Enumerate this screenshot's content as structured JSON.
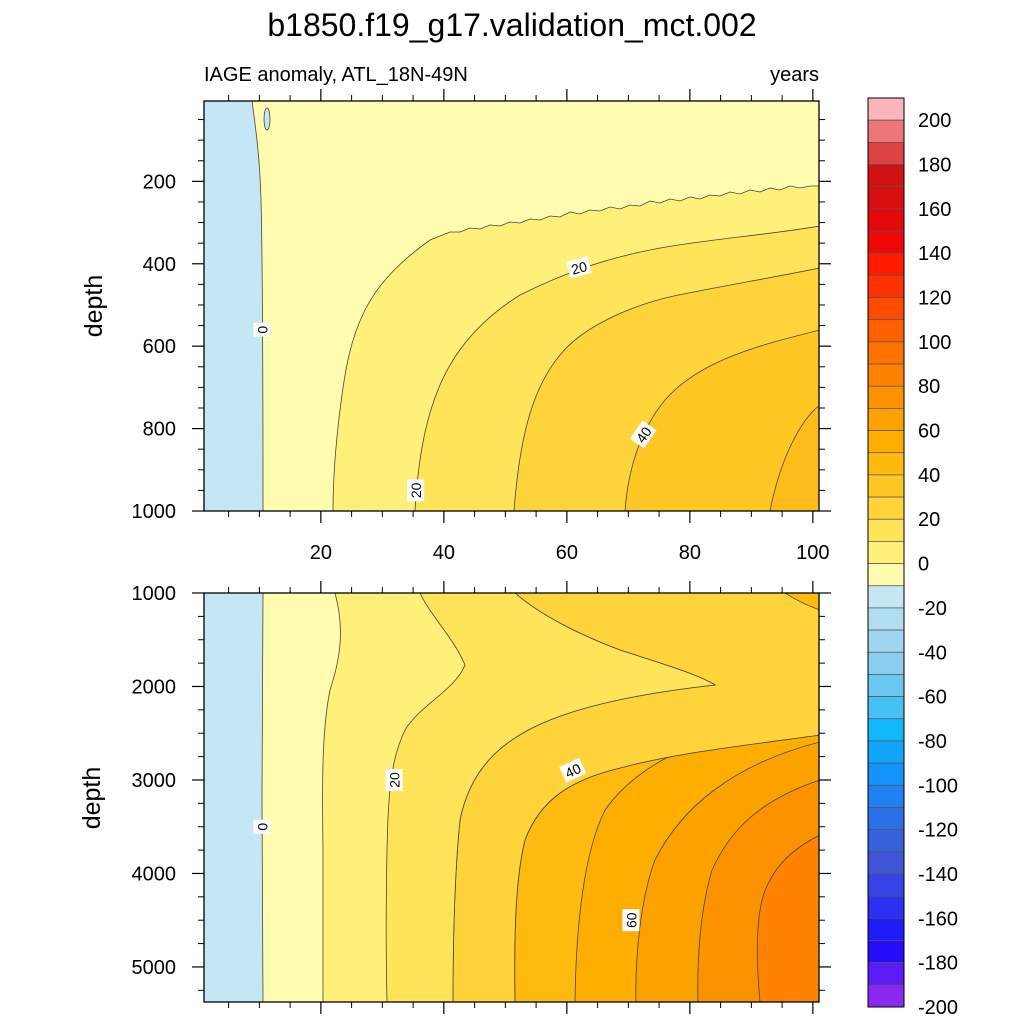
{
  "chart_data": {
    "type": "contour",
    "title": "b1850.f19_g17.validation_mct.002",
    "subtitle_left": "IAGE anomaly, ATL_18N-49N",
    "subtitle_right": "years",
    "xlabel": "",
    "x_ticks": [
      20,
      40,
      60,
      80,
      100
    ],
    "x_range": [
      1,
      101
    ],
    "panels": [
      {
        "name": "upper",
        "ylabel": "depth",
        "y_range": [
          1000,
          5
        ],
        "y_ticks": [
          200,
          400,
          600,
          800,
          1000
        ],
        "contour_labels": [
          {
            "text": "0",
            "x": 10.5,
            "y": 560
          },
          {
            "text": "20",
            "x": 62,
            "y": 410
          },
          {
            "text": "20",
            "x": 35.5,
            "y": 950
          },
          {
            "text": "40",
            "x": 72.5,
            "y": 815
          }
        ]
      },
      {
        "name": "lower",
        "ylabel": "depth",
        "y_range": [
          1000,
          5375
        ],
        "y_ticks": [
          1000,
          2000,
          3000,
          4000,
          5000
        ],
        "contour_labels": [
          {
            "text": "0",
            "x": 10.5,
            "y": 3500
          },
          {
            "text": "20",
            "x": 32,
            "y": 3000
          },
          {
            "text": "40",
            "x": 61,
            "y": 2900
          },
          {
            "text": "60",
            "x": 70.5,
            "y": 4500
          }
        ]
      }
    ],
    "colorbar": {
      "labels": [
        "200",
        "180",
        "160",
        "140",
        "120",
        "100",
        "80",
        "60",
        "40",
        "20",
        "0",
        "-20",
        "-40",
        "-60",
        "-80",
        "-100",
        "-120",
        "-140",
        "-160",
        "-180",
        "-200"
      ],
      "colors": [
        "#f9b5b9",
        "#ef7677",
        "#dd4245",
        "#cf1313",
        "#d90e0e",
        "#e40a0a",
        "#ef0808",
        "#fe1b00",
        "#fe3200",
        "#fd4b00",
        "#fd6000",
        "#fe7200",
        "#ff8200",
        "#fd9200",
        "#fca200",
        "#fdae00",
        "#ffba10",
        "#ffc724",
        "#ffd43a",
        "#ffe358",
        "#fff07a",
        "#fffcb0",
        "#c4e6f5",
        "#b1ddf0",
        "#9fd5ef",
        "#88cdf0",
        "#6ac7f2",
        "#47c0f6",
        "#12b8fc",
        "#0fa6fc",
        "#1393fb",
        "#2181f3",
        "#2c70e6",
        "#3662dc",
        "#3d55d6",
        "#3544e6",
        "#2b30f1",
        "#1e1cf8",
        "#260cf9",
        "#5a1bf4",
        "#8a28ef"
      ]
    }
  }
}
